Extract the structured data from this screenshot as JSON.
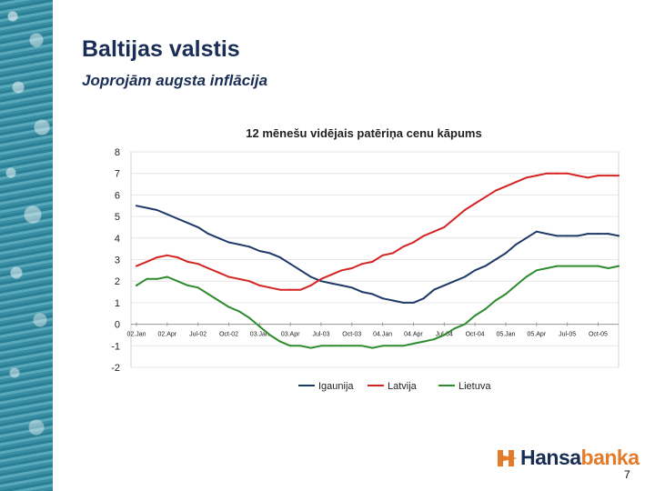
{
  "slide": {
    "title": "Baltijas valstis",
    "subtitle": "Joprojām augsta inflācija",
    "page_number": "7"
  },
  "logo": {
    "part1": "Hansa",
    "part2": "banka",
    "icon": "hansabanka-logo-icon"
  },
  "colors": {
    "title": "#1a2d55",
    "logo_orange": "#e37b2a"
  },
  "chart_data": {
    "type": "line",
    "title": "12 mēnešu vidējais patēriņa cenu kāpums",
    "xlabel": "",
    "ylabel": "",
    "ylim": [
      -2,
      8
    ],
    "yticks": [
      8,
      7,
      6,
      5,
      4,
      3,
      2,
      1,
      0,
      -1,
      -2
    ],
    "grid": true,
    "legend_position": "bottom",
    "x_tick_labels": [
      "02.Jan",
      "02.Apr",
      "Jul-02",
      "Oct-02",
      "03.Jan",
      "03.Apr",
      "Jul-03",
      "Oct-03",
      "04.Jan",
      "04.Apr",
      "Jul-04",
      "Oct-04",
      "05.Jan",
      "05.Apr",
      "Jul-05",
      "Oct-05"
    ],
    "months": [
      "Jan-02",
      "Feb-02",
      "Mar-02",
      "Apr-02",
      "May-02",
      "Jun-02",
      "Jul-02",
      "Aug-02",
      "Sep-02",
      "Oct-02",
      "Nov-02",
      "Dec-02",
      "Jan-03",
      "Feb-03",
      "Mar-03",
      "Apr-03",
      "May-03",
      "Jun-03",
      "Jul-03",
      "Aug-03",
      "Sep-03",
      "Oct-03",
      "Nov-03",
      "Dec-03",
      "Jan-04",
      "Feb-04",
      "Mar-04",
      "Apr-04",
      "May-04",
      "Jun-04",
      "Jul-04",
      "Aug-04",
      "Sep-04",
      "Oct-04",
      "Nov-04",
      "Dec-04",
      "Jan-05",
      "Feb-05",
      "Mar-05",
      "Apr-05",
      "May-05",
      "Jun-05",
      "Jul-05",
      "Aug-05",
      "Sep-05",
      "Oct-05",
      "Nov-05",
      "Dec-05"
    ],
    "series": [
      {
        "name": "Igaunija",
        "color": "#1f3a68",
        "values": [
          5.5,
          5.4,
          5.3,
          5.1,
          4.9,
          4.7,
          4.5,
          4.2,
          4.0,
          3.8,
          3.7,
          3.6,
          3.4,
          3.3,
          3.1,
          2.8,
          2.5,
          2.2,
          2.0,
          1.9,
          1.8,
          1.7,
          1.5,
          1.4,
          1.2,
          1.1,
          1.0,
          1.0,
          1.2,
          1.6,
          1.8,
          2.0,
          2.2,
          2.5,
          2.7,
          3.0,
          3.3,
          3.7,
          4.0,
          4.3,
          4.2,
          4.1,
          4.1,
          4.1,
          4.2,
          4.2,
          4.2,
          4.1
        ]
      },
      {
        "name": "Latvija",
        "color": "#d42424",
        "values": [
          2.7,
          2.9,
          3.1,
          3.2,
          3.1,
          2.9,
          2.8,
          2.6,
          2.4,
          2.2,
          2.1,
          2.0,
          1.8,
          1.7,
          1.6,
          1.6,
          1.6,
          1.8,
          2.1,
          2.3,
          2.5,
          2.6,
          2.8,
          2.9,
          3.2,
          3.3,
          3.6,
          3.8,
          4.1,
          4.3,
          4.5,
          4.9,
          5.3,
          5.6,
          5.9,
          6.2,
          6.4,
          6.6,
          6.8,
          6.9,
          7.0,
          7.0,
          7.0,
          6.9,
          6.8,
          6.9,
          6.9,
          6.9
        ]
      },
      {
        "name": "Lietuva",
        "color": "#2e8b2e",
        "values": [
          1.8,
          2.1,
          2.1,
          2.2,
          2.0,
          1.8,
          1.7,
          1.4,
          1.1,
          0.8,
          0.6,
          0.3,
          -0.1,
          -0.5,
          -0.8,
          -1.0,
          -1.0,
          -1.1,
          -1.0,
          -1.0,
          -1.0,
          -1.0,
          -1.0,
          -1.1,
          -1.0,
          -1.0,
          -1.0,
          -0.9,
          -0.8,
          -0.7,
          -0.5,
          -0.2,
          0.0,
          0.4,
          0.7,
          1.1,
          1.4,
          1.8,
          2.2,
          2.5,
          2.6,
          2.7,
          2.7,
          2.7,
          2.7,
          2.7,
          2.6,
          2.7
        ]
      }
    ]
  }
}
